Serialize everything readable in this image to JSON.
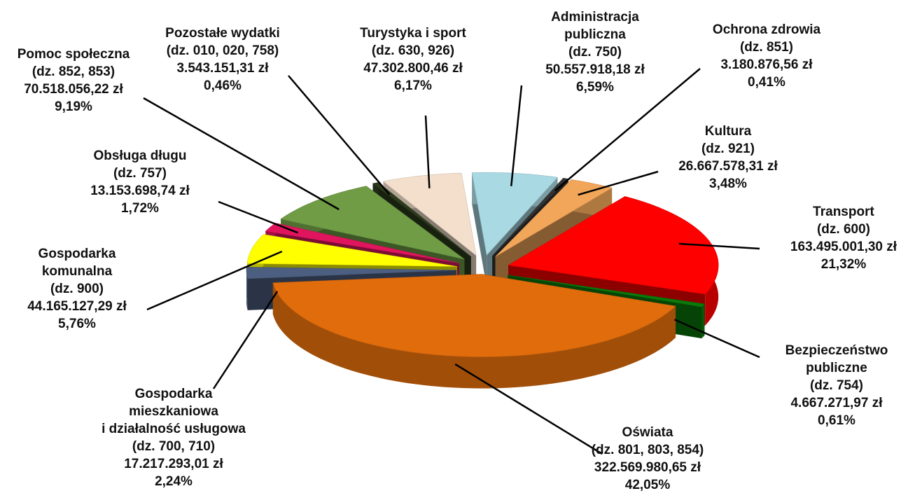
{
  "chart_data": {
    "type": "pie",
    "categories": [
      "Administracja\npubliczna",
      "Ochrona zdrowia",
      "Kultura",
      "Transport",
      "Bezpieczeństwo\npubliczne",
      "Oświata",
      "Gospodarka\nmieszkaniowa\ni działalność usługowa",
      "Gospodarka\nkomunalna",
      "Obsługa długu",
      "Pomoc społeczna",
      "Pozostałe wydatki",
      "Turystyka i sport"
    ],
    "sections": [
      "(dz. 750)",
      "(dz. 851)",
      "(dz. 921)",
      "(dz. 600)",
      "(dz. 754)",
      "(dz. 801, 803, 854)",
      "(dz. 700, 710)",
      "(dz. 900)",
      "(dz. 757)",
      "(dz. 852, 853)",
      "(dz. 010, 020, 758)",
      "(dz. 630, 926)"
    ],
    "amounts": [
      "50.557.918,18 zł",
      "3.180.876,56 zł",
      "26.667.578,31 zł",
      "163.495.001,30 zł",
      "4.667.271,97 zł",
      "322.569.980,65 zł",
      "17.217.293,01 zł",
      "44.165.127,29 zł",
      "13.153.698,74 zł",
      "70.518.056,22 zł",
      "3.543.151,31 zł",
      "47.302.800,46 zł"
    ],
    "values": [
      6.59,
      0.41,
      3.48,
      21.32,
      0.61,
      42.05,
      2.24,
      5.76,
      1.72,
      9.19,
      0.46,
      6.17
    ],
    "value_labels": [
      "6,59%",
      "0,41%",
      "3,48%",
      "21,32%",
      "0,61%",
      "42,05%",
      "2,24%",
      "5,76%",
      "1,72%",
      "9,19%",
      "0,46%",
      "6,17%"
    ],
    "colors": [
      "#a9d9e3",
      "#333333",
      "#f2a65a",
      "#ff0000",
      "#0a7a0a",
      "#e06c0c",
      "#4d5f80",
      "#ffff00",
      "#e0155e",
      "#6f9c45",
      "#2c3b1c",
      "#f3dfcc"
    ]
  }
}
